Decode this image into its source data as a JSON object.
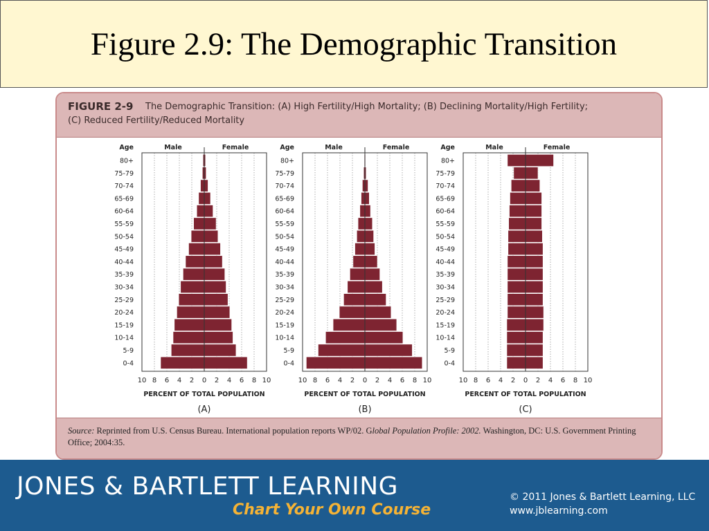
{
  "slide": {
    "title": "Figure 2.9: The Demographic Transition"
  },
  "figure": {
    "label": "FIGURE 2-9",
    "caption_line1": "The Demographic Transition: (A) High Fertility/High Mortality; (B) Declining Mortality/High Fertility;",
    "caption_line2": "(C) Reduced Fertility/Reduced Mortality",
    "source_label": "Source:",
    "source_text1": " Reprinted from U.S. Census Bureau. International population reports WP/02. G",
    "source_italic": "lobal Population Profile: 2002.",
    "source_text2": " Washington, DC: U.S. Government Printing Office; 2004:35."
  },
  "footer": {
    "brand": "JONES & BARTLETT LEARNING",
    "tagline": "Chart Your Own Course",
    "copyright": "© 2011 Jones & Bartlett Learning, LLC",
    "website": "www.jblearning.com"
  },
  "colors": {
    "bar": "#7e2431",
    "grid": "#9a9a9a",
    "axis": "#333333"
  },
  "chart_data": [
    {
      "type": "bar",
      "orientation": "horizontal-population-pyramid",
      "panel_label": "(A)",
      "age_label": "Age",
      "male_label": "Male",
      "female_label": "Female",
      "xlabel": "PERCENT OF TOTAL POPULATION",
      "xlim": [
        -10,
        10
      ],
      "x_ticks": [
        "10",
        "8",
        "6",
        "4",
        "2",
        "0",
        "2",
        "4",
        "6",
        "8",
        "10"
      ],
      "categories": [
        "80+",
        "75-79",
        "70-74",
        "65-69",
        "60-64",
        "55-59",
        "50-54",
        "45-49",
        "40-44",
        "35-39",
        "30-34",
        "25-29",
        "20-24",
        "15-19",
        "10-14",
        "5-9",
        "0-4"
      ],
      "series": [
        {
          "name": "Male",
          "values": [
            0.2,
            0.3,
            0.6,
            0.9,
            1.2,
            1.7,
            2.1,
            2.5,
            3.0,
            3.4,
            3.8,
            4.1,
            4.4,
            4.8,
            5.0,
            5.3,
            7.0
          ]
        },
        {
          "name": "Female",
          "values": [
            0.2,
            0.3,
            0.6,
            1.0,
            1.4,
            1.9,
            2.2,
            2.6,
            2.9,
            3.3,
            3.5,
            3.8,
            4.1,
            4.4,
            4.6,
            5.1,
            6.9
          ]
        }
      ]
    },
    {
      "type": "bar",
      "orientation": "horizontal-population-pyramid",
      "panel_label": "(B)",
      "age_label": "Age",
      "male_label": "Male",
      "female_label": "Female",
      "xlabel": "PERCENT OF TOTAL POPULATION",
      "xlim": [
        -10,
        10
      ],
      "x_ticks": [
        "10",
        "8",
        "6",
        "4",
        "2",
        "0",
        "2",
        "4",
        "6",
        "8",
        "10"
      ],
      "categories": [
        "80+",
        "75-79",
        "70-74",
        "65-69",
        "60-64",
        "55-59",
        "50-54",
        "45-49",
        "40-44",
        "35-39",
        "30-34",
        "25-29",
        "20-24",
        "15-19",
        "10-14",
        "5-9",
        "0-4"
      ],
      "series": [
        {
          "name": "Male",
          "values": [
            0.1,
            0.2,
            0.4,
            0.6,
            0.8,
            1.1,
            1.3,
            1.6,
            1.9,
            2.4,
            2.8,
            3.4,
            4.1,
            5.1,
            6.3,
            7.5,
            9.4
          ]
        },
        {
          "name": "Female",
          "values": [
            0.1,
            0.2,
            0.5,
            0.7,
            0.9,
            1.2,
            1.4,
            1.6,
            2.0,
            2.4,
            2.8,
            3.4,
            4.2,
            5.1,
            6.1,
            7.6,
            9.2
          ]
        }
      ]
    },
    {
      "type": "bar",
      "orientation": "horizontal-population-pyramid",
      "panel_label": "(C)",
      "age_label": "Age",
      "male_label": "Male",
      "female_label": "Female",
      "xlabel": "PERCENT OF TOTAL POPULATION",
      "xlim": [
        -10,
        10
      ],
      "x_ticks": [
        "10",
        "8",
        "6",
        "4",
        "2",
        "0",
        "2",
        "4",
        "6",
        "8",
        "10"
      ],
      "categories": [
        "80+",
        "75-79",
        "70-74",
        "65-69",
        "60-64",
        "55-59",
        "50-54",
        "45-49",
        "40-44",
        "35-39",
        "30-34",
        "25-29",
        "20-24",
        "15-19",
        "10-14",
        "5-9",
        "0-4"
      ],
      "series": [
        {
          "name": "Male",
          "values": [
            2.9,
            1.9,
            2.3,
            2.5,
            2.6,
            2.7,
            2.8,
            2.8,
            2.9,
            2.9,
            2.9,
            2.9,
            2.9,
            3.0,
            3.0,
            3.0,
            3.0
          ]
        },
        {
          "name": "Female",
          "values": [
            4.5,
            2.0,
            2.3,
            2.6,
            2.6,
            2.6,
            2.7,
            2.8,
            2.8,
            2.8,
            2.8,
            2.8,
            2.9,
            2.9,
            2.8,
            2.8,
            2.8
          ]
        }
      ]
    }
  ]
}
